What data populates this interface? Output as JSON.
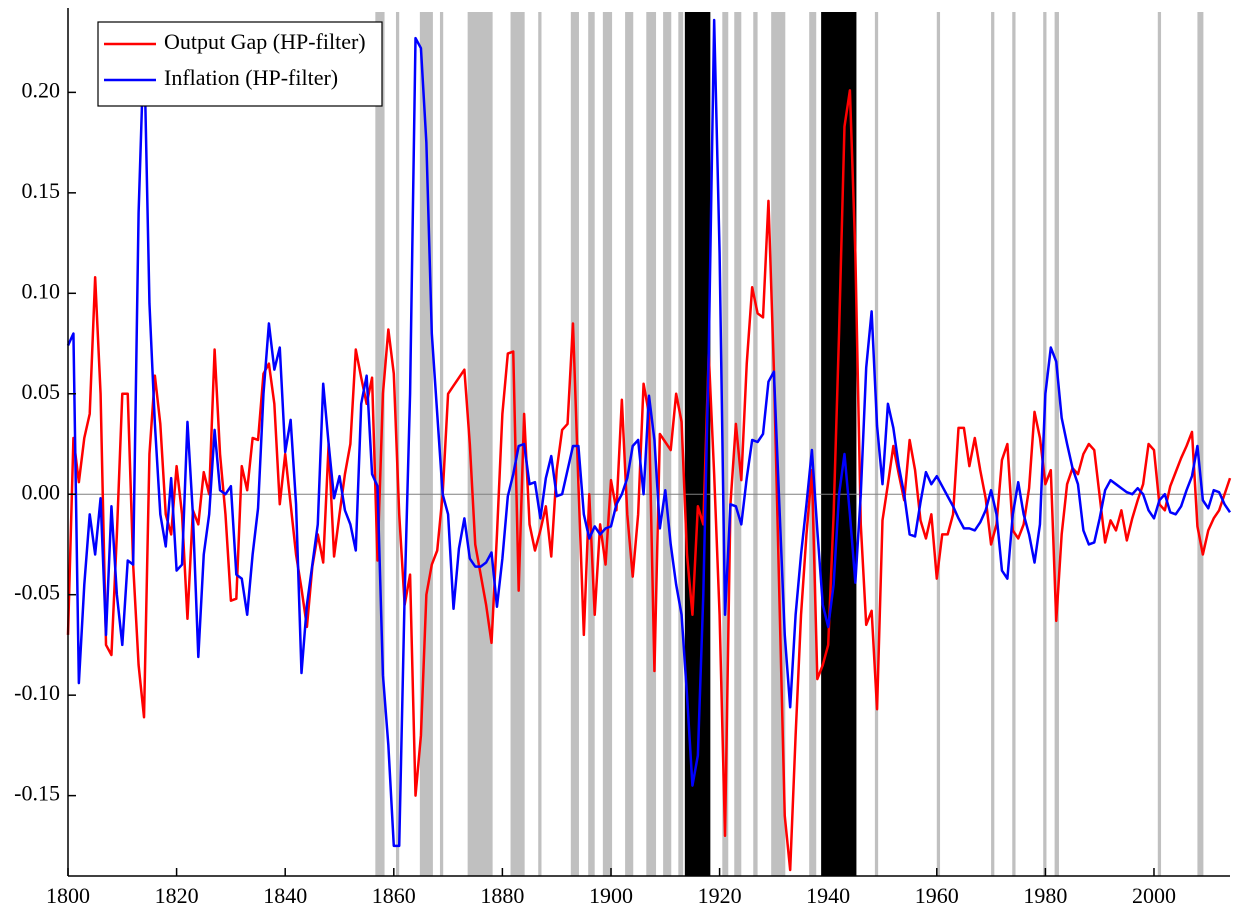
{
  "chart_data": {
    "type": "line",
    "legend_position": "upper left",
    "zero_line": true,
    "xlim": [
      1800,
      2014
    ],
    "ylim": [
      -0.19,
      0.24
    ],
    "xticks": [
      1800,
      1820,
      1840,
      1860,
      1880,
      1900,
      1920,
      1940,
      1960,
      1980,
      2000
    ],
    "yticks": [
      -0.15,
      {
        "value": -0.1,
        "label": "-0.10"
      },
      -0.05,
      {
        "value": 0,
        "label": "0.00"
      },
      0.05,
      {
        "value": 0.1,
        "label": "0.10"
      },
      0.15,
      {
        "value": 0.2,
        "label": "0.20"
      }
    ],
    "shaded_periods": [
      {
        "start": 1856.6,
        "end": 1858.3,
        "color": "#c0c0c0"
      },
      {
        "start": 1860.4,
        "end": 1861.0,
        "color": "#c0c0c0"
      },
      {
        "start": 1864.8,
        "end": 1867.2,
        "color": "#c0c0c0"
      },
      {
        "start": 1868.5,
        "end": 1869.1,
        "color": "#c0c0c0"
      },
      {
        "start": 1873.6,
        "end": 1878.2,
        "color": "#c0c0c0"
      },
      {
        "start": 1881.5,
        "end": 1884.1,
        "color": "#c0c0c0"
      },
      {
        "start": 1886.6,
        "end": 1887.2,
        "color": "#c0c0c0"
      },
      {
        "start": 1892.6,
        "end": 1894.1,
        "color": "#c0c0c0"
      },
      {
        "start": 1895.8,
        "end": 1897.0,
        "color": "#c0c0c0"
      },
      {
        "start": 1898.5,
        "end": 1900.2,
        "color": "#c0c0c0"
      },
      {
        "start": 1902.6,
        "end": 1904.1,
        "color": "#c0c0c0"
      },
      {
        "start": 1906.5,
        "end": 1908.3,
        "color": "#c0c0c0"
      },
      {
        "start": 1909.6,
        "end": 1911.1,
        "color": "#c0c0c0"
      },
      {
        "start": 1912.4,
        "end": 1913.3,
        "color": "#c0c0c0"
      },
      {
        "start": 1913.6,
        "end": 1918.3,
        "color": "#000000"
      },
      {
        "start": 1920.5,
        "end": 1921.6,
        "color": "#c0c0c0"
      },
      {
        "start": 1922.7,
        "end": 1924.0,
        "color": "#c0c0c0"
      },
      {
        "start": 1926.2,
        "end": 1927.0,
        "color": "#c0c0c0"
      },
      {
        "start": 1929.5,
        "end": 1932.1,
        "color": "#c0c0c0"
      },
      {
        "start": 1936.5,
        "end": 1937.8,
        "color": "#c0c0c0"
      },
      {
        "start": 1938.7,
        "end": 1945.2,
        "color": "#000000"
      },
      {
        "start": 1948.6,
        "end": 1949.2,
        "color": "#c0c0c0"
      },
      {
        "start": 1960.0,
        "end": 1960.6,
        "color": "#c0c0c0"
      },
      {
        "start": 1970.0,
        "end": 1970.6,
        "color": "#c0c0c0"
      },
      {
        "start": 1973.9,
        "end": 1974.5,
        "color": "#c0c0c0"
      },
      {
        "start": 1979.6,
        "end": 1980.2,
        "color": "#c0c0c0"
      },
      {
        "start": 1981.7,
        "end": 1982.5,
        "color": "#c0c0c0"
      },
      {
        "start": 2000.7,
        "end": 2001.3,
        "color": "#c0c0c0"
      },
      {
        "start": 2008.0,
        "end": 2009.1,
        "color": "#c0c0c0"
      }
    ],
    "x": [
      1800,
      1801,
      1802,
      1803,
      1804,
      1805,
      1806,
      1807,
      1808,
      1809,
      1810,
      1811,
      1812,
      1813,
      1814,
      1815,
      1816,
      1817,
      1818,
      1819,
      1820,
      1821,
      1822,
      1823,
      1824,
      1825,
      1826,
      1827,
      1828,
      1829,
      1830,
      1831,
      1832,
      1833,
      1834,
      1835,
      1836,
      1837,
      1838,
      1839,
      1840,
      1841,
      1842,
      1843,
      1844,
      1845,
      1846,
      1847,
      1848,
      1849,
      1850,
      1851,
      1852,
      1853,
      1854,
      1855,
      1856,
      1857,
      1858,
      1859,
      1860,
      1861,
      1862,
      1863,
      1864,
      1865,
      1866,
      1867,
      1868,
      1869,
      1870,
      1871,
      1872,
      1873,
      1874,
      1875,
      1876,
      1877,
      1878,
      1879,
      1880,
      1881,
      1882,
      1883,
      1884,
      1885,
      1886,
      1887,
      1888,
      1889,
      1890,
      1891,
      1892,
      1893,
      1894,
      1895,
      1896,
      1897,
      1898,
      1899,
      1900,
      1901,
      1902,
      1903,
      1904,
      1905,
      1906,
      1907,
      1908,
      1909,
      1910,
      1911,
      1912,
      1913,
      1914,
      1915,
      1916,
      1917,
      1918,
      1919,
      1920,
      1921,
      1922,
      1923,
      1924,
      1925,
      1926,
      1927,
      1928,
      1929,
      1930,
      1931,
      1932,
      1933,
      1934,
      1935,
      1936,
      1937,
      1938,
      1939,
      1940,
      1941,
      1942,
      1943,
      1944,
      1945,
      1946,
      1947,
      1948,
      1949,
      1950,
      1951,
      1952,
      1953,
      1954,
      1955,
      1956,
      1957,
      1958,
      1959,
      1960,
      1961,
      1962,
      1963,
      1964,
      1965,
      1966,
      1967,
      1968,
      1969,
      1970,
      1971,
      1972,
      1973,
      1974,
      1975,
      1976,
      1977,
      1978,
      1979,
      1980,
      1981,
      1982,
      1983,
      1984,
      1985,
      1986,
      1987,
      1988,
      1989,
      1990,
      1991,
      1992,
      1993,
      1994,
      1995,
      1996,
      1997,
      1998,
      1999,
      2000,
      2001,
      2002,
      2003,
      2004,
      2005,
      2006,
      2007,
      2008,
      2009,
      2010,
      2011,
      2012,
      2013,
      2014
    ],
    "series": [
      {
        "name": "Output Gap (HP-filter)",
        "color": "#ff0000",
        "values": [
          -0.07,
          0.028,
          0.006,
          0.028,
          0.04,
          0.108,
          0.05,
          -0.075,
          -0.08,
          -0.02,
          0.05,
          0.05,
          -0.035,
          -0.085,
          -0.111,
          0.02,
          0.059,
          0.035,
          -0.01,
          -0.02,
          0.014,
          -0.01,
          -0.062,
          -0.008,
          -0.015,
          0.011,
          0.0,
          0.072,
          0.02,
          -0.01,
          -0.053,
          -0.052,
          0.014,
          0.002,
          0.028,
          0.027,
          0.06,
          0.065,
          0.045,
          -0.005,
          0.02,
          -0.005,
          -0.03,
          -0.047,
          -0.066,
          -0.036,
          -0.02,
          -0.034,
          0.025,
          -0.031,
          -0.01,
          0.01,
          0.025,
          0.072,
          0.058,
          0.045,
          0.058,
          -0.033,
          0.05,
          0.082,
          0.06,
          -0.01,
          -0.055,
          -0.04,
          -0.15,
          -0.12,
          -0.05,
          -0.035,
          -0.028,
          0.0,
          0.05,
          0.054,
          0.058,
          0.062,
          0.025,
          -0.025,
          -0.04,
          -0.055,
          -0.074,
          -0.02,
          0.04,
          0.07,
          0.071,
          -0.048,
          0.04,
          -0.015,
          -0.028,
          -0.018,
          -0.006,
          -0.031,
          0.012,
          0.032,
          0.035,
          0.085,
          0.005,
          -0.07,
          0.0,
          -0.06,
          -0.015,
          -0.035,
          0.007,
          -0.008,
          0.047,
          -0.01,
          -0.041,
          -0.01,
          0.055,
          0.04,
          -0.088,
          0.03,
          0.026,
          0.022,
          0.05,
          0.036,
          -0.03,
          -0.06,
          -0.006,
          -0.015,
          0.07,
          0.01,
          -0.06,
          -0.17,
          -0.005,
          0.035,
          0.007,
          0.065,
          0.103,
          0.09,
          0.088,
          0.146,
          0.062,
          -0.05,
          -0.16,
          -0.187,
          -0.12,
          -0.06,
          -0.02,
          0.012,
          -0.092,
          -0.085,
          -0.075,
          -0.01,
          0.08,
          0.183,
          0.201,
          0.12,
          -0.015,
          -0.065,
          -0.058,
          -0.107,
          -0.013,
          0.005,
          0.024,
          0.01,
          -0.003,
          0.027,
          0.012,
          -0.013,
          -0.022,
          -0.01,
          -0.042,
          -0.02,
          -0.02,
          -0.01,
          0.033,
          0.033,
          0.014,
          0.028,
          0.012,
          -0.002,
          -0.025,
          -0.015,
          0.017,
          0.025,
          -0.018,
          -0.022,
          -0.015,
          0.003,
          0.041,
          0.028,
          0.005,
          0.012,
          -0.063,
          -0.02,
          0.005,
          0.013,
          0.01,
          0.02,
          0.025,
          0.022,
          -0.001,
          -0.024,
          -0.013,
          -0.018,
          -0.008,
          -0.023,
          -0.012,
          -0.003,
          0.005,
          0.025,
          0.022,
          -0.005,
          -0.008,
          0.004,
          0.011,
          0.018,
          0.024,
          0.031,
          -0.016,
          -0.03,
          -0.018,
          -0.012,
          -0.008,
          0.0,
          0.008
        ]
      },
      {
        "name": "Inflation (HP-filter)",
        "color": "#0000ff",
        "values": [
          0.074,
          0.08,
          -0.094,
          -0.045,
          -0.01,
          -0.03,
          -0.002,
          -0.07,
          -0.006,
          -0.05,
          -0.075,
          -0.033,
          -0.035,
          0.14,
          0.226,
          0.095,
          0.035,
          -0.01,
          -0.026,
          0.008,
          -0.038,
          -0.035,
          0.036,
          -0.01,
          -0.081,
          -0.03,
          -0.01,
          0.032,
          0.002,
          0.0,
          0.004,
          -0.04,
          -0.042,
          -0.06,
          -0.03,
          -0.007,
          0.05,
          0.085,
          0.062,
          0.073,
          0.021,
          0.037,
          -0.005,
          -0.089,
          -0.055,
          -0.035,
          -0.015,
          0.055,
          0.025,
          -0.002,
          0.009,
          -0.008,
          -0.015,
          -0.028,
          0.045,
          0.059,
          0.01,
          0.004,
          -0.09,
          -0.125,
          -0.175,
          -0.175,
          -0.05,
          0.05,
          0.227,
          0.222,
          0.175,
          0.08,
          0.04,
          0.0,
          -0.01,
          -0.057,
          -0.027,
          -0.012,
          -0.032,
          -0.036,
          -0.036,
          -0.034,
          -0.029,
          -0.056,
          -0.032,
          -0.001,
          0.01,
          0.024,
          0.025,
          0.005,
          0.006,
          -0.012,
          0.008,
          0.019,
          -0.001,
          0.0,
          0.012,
          0.024,
          0.024,
          -0.01,
          -0.022,
          -0.016,
          -0.02,
          -0.017,
          -0.016,
          -0.005,
          0.0,
          0.008,
          0.024,
          0.027,
          0.0,
          0.049,
          0.027,
          -0.017,
          0.002,
          -0.025,
          -0.045,
          -0.06,
          -0.1,
          -0.145,
          -0.13,
          -0.05,
          0.07,
          0.236,
          0.12,
          -0.06,
          -0.005,
          -0.006,
          -0.015,
          0.008,
          0.027,
          0.026,
          0.03,
          0.056,
          0.061,
          -0.005,
          -0.07,
          -0.106,
          -0.06,
          -0.03,
          -0.005,
          0.022,
          -0.018,
          -0.055,
          -0.066,
          -0.045,
          0.0,
          0.02,
          -0.01,
          -0.044,
          0.0,
          0.063,
          0.091,
          0.034,
          0.005,
          0.045,
          0.033,
          0.014,
          0.0,
          -0.02,
          -0.021,
          -0.004,
          0.011,
          0.005,
          0.009,
          0.004,
          -0.001,
          -0.006,
          -0.012,
          -0.017,
          -0.017,
          -0.018,
          -0.014,
          -0.008,
          0.002,
          -0.01,
          -0.038,
          -0.042,
          -0.01,
          0.006,
          -0.01,
          -0.02,
          -0.034,
          -0.015,
          0.05,
          0.073,
          0.066,
          0.038,
          0.025,
          0.013,
          0.005,
          -0.018,
          -0.025,
          -0.024,
          -0.012,
          0.002,
          0.007,
          0.005,
          0.003,
          0.001,
          0.0,
          0.003,
          0.0,
          -0.008,
          -0.012,
          -0.003,
          0.0,
          -0.009,
          -0.01,
          -0.006,
          0.002,
          0.009,
          0.024,
          -0.003,
          -0.007,
          0.002,
          0.001,
          -0.005,
          -0.009
        ]
      }
    ]
  }
}
